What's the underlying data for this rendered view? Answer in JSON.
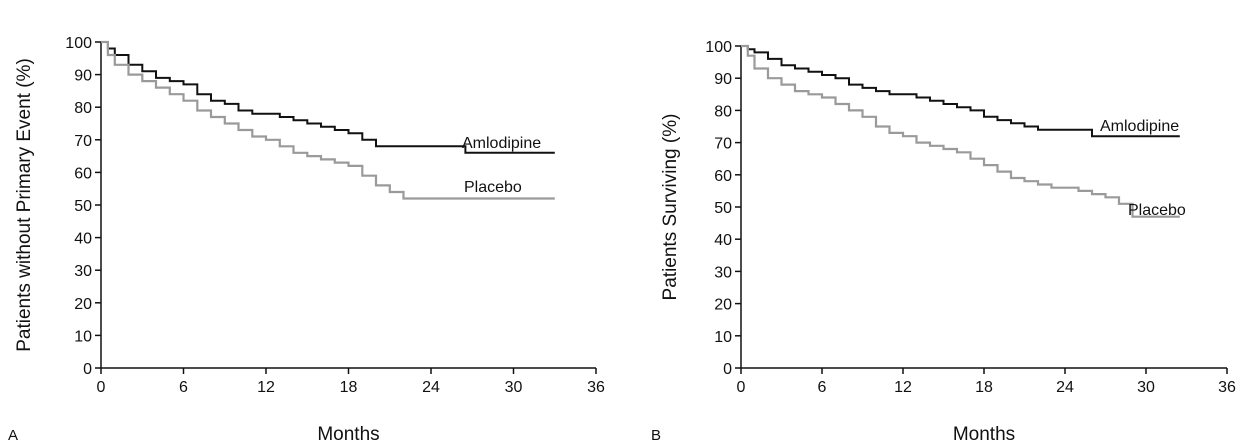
{
  "chart_data": [
    {
      "type": "line",
      "panel_label": "A",
      "xlabel": "Months",
      "ylabel": "Patients without Primary Event (%)",
      "xlim": [
        0,
        36
      ],
      "ylim": [
        0,
        100
      ],
      "xticks": [
        0,
        6,
        12,
        18,
        24,
        30,
        36
      ],
      "yticks": [
        0,
        10,
        20,
        30,
        40,
        50,
        60,
        70,
        80,
        90,
        100
      ],
      "grid": false,
      "step": true,
      "series": [
        {
          "name": "Amlodipine",
          "color": "#111111",
          "x": [
            0,
            0.5,
            1,
            2,
            3,
            4,
            5,
            6,
            7,
            8,
            9,
            10,
            11,
            12,
            13,
            14,
            15,
            16,
            17,
            18,
            19,
            20,
            21,
            22,
            23,
            24,
            25,
            26,
            26.5,
            27,
            30,
            33
          ],
          "y": [
            100,
            98,
            96,
            93,
            91,
            89,
            88,
            87,
            84,
            82,
            81,
            79,
            78,
            78,
            77,
            76,
            75,
            74,
            73,
            72,
            70,
            68,
            68,
            68,
            68,
            68,
            68,
            68,
            66,
            66,
            66,
            66
          ]
        },
        {
          "name": "Placebo",
          "color": "#9a9a9a",
          "x": [
            0,
            0.5,
            1,
            2,
            3,
            4,
            5,
            6,
            7,
            8,
            9,
            10,
            11,
            12,
            13,
            14,
            15,
            16,
            17,
            18,
            19,
            20,
            21,
            22,
            23,
            24,
            27,
            30,
            33
          ],
          "y": [
            100,
            96,
            93,
            90,
            88,
            86,
            84,
            82,
            79,
            77,
            75,
            73,
            71,
            70,
            68,
            66,
            65,
            64,
            63,
            62,
            59,
            56,
            54,
            52,
            52,
            52,
            52,
            52,
            52
          ]
        }
      ]
    },
    {
      "type": "line",
      "panel_label": "B",
      "xlabel": "Months",
      "ylabel": "Patients Surviving (%)",
      "xlim": [
        0,
        36
      ],
      "ylim": [
        0,
        100
      ],
      "xticks": [
        0,
        6,
        12,
        18,
        24,
        30,
        36
      ],
      "yticks": [
        0,
        10,
        20,
        30,
        40,
        50,
        60,
        70,
        80,
        90,
        100
      ],
      "grid": false,
      "step": true,
      "series": [
        {
          "name": "Amlodipine",
          "color": "#111111",
          "x": [
            0,
            0.5,
            1,
            2,
            3,
            4,
            5,
            6,
            7,
            8,
            9,
            10,
            11,
            12,
            13,
            14,
            15,
            16,
            17,
            18,
            19,
            20,
            21,
            22,
            23,
            24,
            25,
            26,
            29,
            32.5
          ],
          "y": [
            100,
            99,
            98,
            96,
            94,
            93,
            92,
            91,
            90,
            88,
            87,
            86,
            85,
            85,
            84,
            83,
            82,
            81,
            80,
            78,
            77,
            76,
            75,
            74,
            74,
            74,
            74,
            72,
            72,
            72
          ]
        },
        {
          "name": "Placebo",
          "color": "#9a9a9a",
          "x": [
            0,
            0.5,
            1,
            2,
            3,
            4,
            5,
            6,
            7,
            8,
            9,
            10,
            11,
            12,
            13,
            14,
            15,
            16,
            17,
            18,
            19,
            20,
            21,
            22,
            23,
            24,
            25,
            26,
            27,
            28,
            29,
            30,
            32.5
          ],
          "y": [
            100,
            97,
            93,
            90,
            88,
            86,
            85,
            84,
            82,
            80,
            78,
            75,
            73,
            72,
            70,
            69,
            68,
            67,
            65,
            63,
            61,
            59,
            58,
            57,
            56,
            56,
            55,
            54,
            53,
            51,
            47,
            47,
            47
          ]
        }
      ]
    }
  ]
}
